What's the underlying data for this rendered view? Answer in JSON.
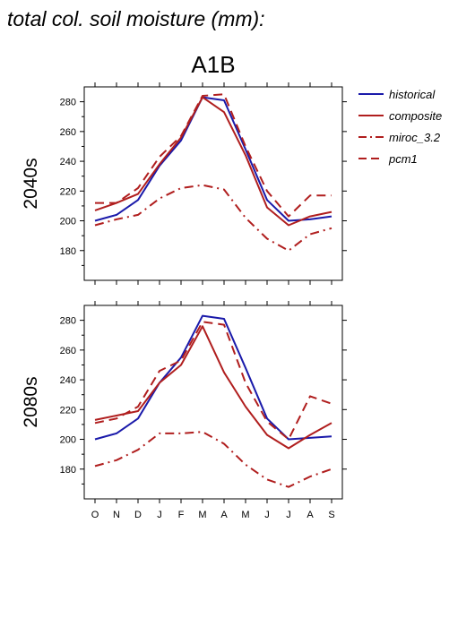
{
  "page_title": "total col. soil moisture (mm):",
  "scenario": "A1B",
  "colors": {
    "historical": "#1a1aaa",
    "gcm": "#b01e1e"
  },
  "legend": [
    {
      "key": "historical",
      "label": "historical",
      "style": "solid",
      "color": "#1a1aaa"
    },
    {
      "key": "composite",
      "label": "composite",
      "style": "solid",
      "color": "#b01e1e"
    },
    {
      "key": "miroc",
      "label": "miroc_3.2",
      "style": "dashdot",
      "color": "#b01e1e"
    },
    {
      "key": "pcm1",
      "label": "pcm1",
      "style": "dashed",
      "color": "#b01e1e"
    }
  ],
  "chart_data": [
    {
      "type": "line",
      "title": "A1B",
      "ylabel": "2040s",
      "categories": [
        "O",
        "N",
        "D",
        "J",
        "F",
        "M",
        "A",
        "M",
        "J",
        "J",
        "A",
        "S"
      ],
      "ylim": [
        160,
        290
      ],
      "yticks": [
        180,
        200,
        220,
        240,
        260,
        280
      ],
      "ytick_labels": [
        "180",
        "200",
        "220",
        "240",
        "260",
        "280"
      ],
      "series": [
        {
          "name": "historical",
          "style": "solid",
          "color": "#1a1aaa",
          "values": [
            200,
            204,
            214,
            237,
            254,
            283,
            281,
            248,
            214,
            200,
            201,
            203
          ]
        },
        {
          "name": "composite",
          "style": "solid",
          "color": "#b01e1e",
          "values": [
            207,
            212,
            218,
            238,
            256,
            283,
            273,
            244,
            209,
            197,
            203,
            206
          ]
        },
        {
          "name": "miroc_3.2",
          "style": "dashdot",
          "color": "#b01e1e",
          "values": [
            197,
            201,
            204,
            215,
            222,
            224,
            221,
            202,
            188,
            180,
            191,
            195
          ]
        },
        {
          "name": "pcm1",
          "style": "dashed",
          "color": "#b01e1e",
          "values": [
            212,
            212,
            222,
            243,
            257,
            284,
            285,
            250,
            220,
            203,
            217,
            217
          ]
        }
      ]
    },
    {
      "type": "line",
      "title": "",
      "ylabel": "2080s",
      "categories": [
        "O",
        "N",
        "D",
        "J",
        "F",
        "M",
        "A",
        "M",
        "J",
        "J",
        "A",
        "S"
      ],
      "ylim": [
        160,
        290
      ],
      "yticks": [
        180,
        200,
        220,
        240,
        260,
        280
      ],
      "ytick_labels": [
        "180",
        "200",
        "220",
        "240",
        "260",
        "280"
      ],
      "series": [
        {
          "name": "historical",
          "style": "solid",
          "color": "#1a1aaa",
          "values": [
            200,
            204,
            214,
            238,
            255,
            283,
            281,
            248,
            214,
            200,
            201,
            202
          ]
        },
        {
          "name": "composite",
          "style": "solid",
          "color": "#b01e1e",
          "values": [
            213,
            216,
            219,
            238,
            250,
            276,
            245,
            222,
            203,
            194,
            203,
            211
          ]
        },
        {
          "name": "miroc_3.2",
          "style": "dashdot",
          "color": "#b01e1e",
          "values": [
            182,
            186,
            193,
            204,
            204,
            205,
            197,
            183,
            173,
            168,
            175,
            180
          ]
        },
        {
          "name": "pcm1",
          "style": "dashed",
          "color": "#b01e1e",
          "values": [
            211,
            214,
            222,
            246,
            253,
            279,
            277,
            238,
            212,
            200,
            229,
            224
          ]
        }
      ]
    }
  ]
}
